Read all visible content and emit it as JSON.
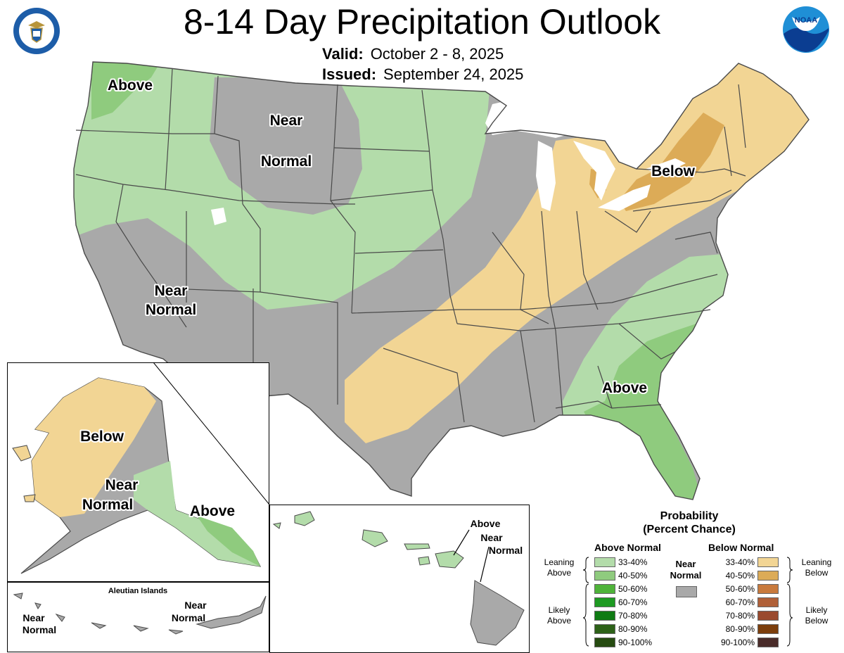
{
  "header": {
    "title": "8-14 Day Precipitation Outlook",
    "valid_label": "Valid:",
    "valid_value": "October 2 - 8, 2025",
    "issued_label": "Issued:",
    "issued_value": "September 24, 2025"
  },
  "logos": {
    "left": "doc-seal-icon",
    "right": "noaa-logo-icon",
    "noaa_text": "NOAA"
  },
  "colors": {
    "above_33_40": "#b3dcaa",
    "above_40_50": "#8fcb7e",
    "above_50_60": "#4fb33a",
    "above_60_70": "#1e9a22",
    "above_70_80": "#0f7b13",
    "above_80_90": "#2d6118",
    "above_90_100": "#264b11",
    "below_33_40": "#f2d594",
    "below_40_50": "#dcab57",
    "below_50_60": "#c87a3d",
    "below_60_70": "#b06038",
    "below_70_80": "#9a4a2e",
    "below_80_90": "#7c3e0c",
    "below_90_100": "#4a2c2a",
    "near_normal": "#a9a9a9",
    "water": "#ffffff",
    "state_lines": "#4a4a4a"
  },
  "map_labels": {
    "nw_above": "Above",
    "west_near_1": "Near",
    "west_near_2": "Normal",
    "sw_near_1": "Near",
    "sw_near_2": "Normal",
    "ne_below": "Below",
    "se_above": "Above"
  },
  "alaska": {
    "below": "Below",
    "near_1": "Near",
    "near_2": "Normal",
    "above": "Above"
  },
  "aleutians": {
    "title": "Aleutian Islands",
    "left_near_1": "Near",
    "left_near_2": "Normal",
    "right_near_1": "Near",
    "right_near_2": "Normal"
  },
  "hawaii": {
    "above": "Above",
    "near_1": "Near",
    "near_2": "Normal"
  },
  "legend": {
    "title_1": "Probability",
    "title_2": "(Percent Chance)",
    "above_title": "Above Normal",
    "below_title": "Below Normal",
    "near_1": "Near",
    "near_2": "Normal",
    "leaning_above_1": "Leaning",
    "leaning_above_2": "Above",
    "likely_above_1": "Likely",
    "likely_above_2": "Above",
    "leaning_below_1": "Leaning",
    "leaning_below_2": "Below",
    "likely_below_1": "Likely",
    "likely_below_2": "Below",
    "ranges": [
      "33-40%",
      "40-50%",
      "50-60%",
      "60-70%",
      "70-80%",
      "80-90%",
      "90-100%"
    ]
  }
}
